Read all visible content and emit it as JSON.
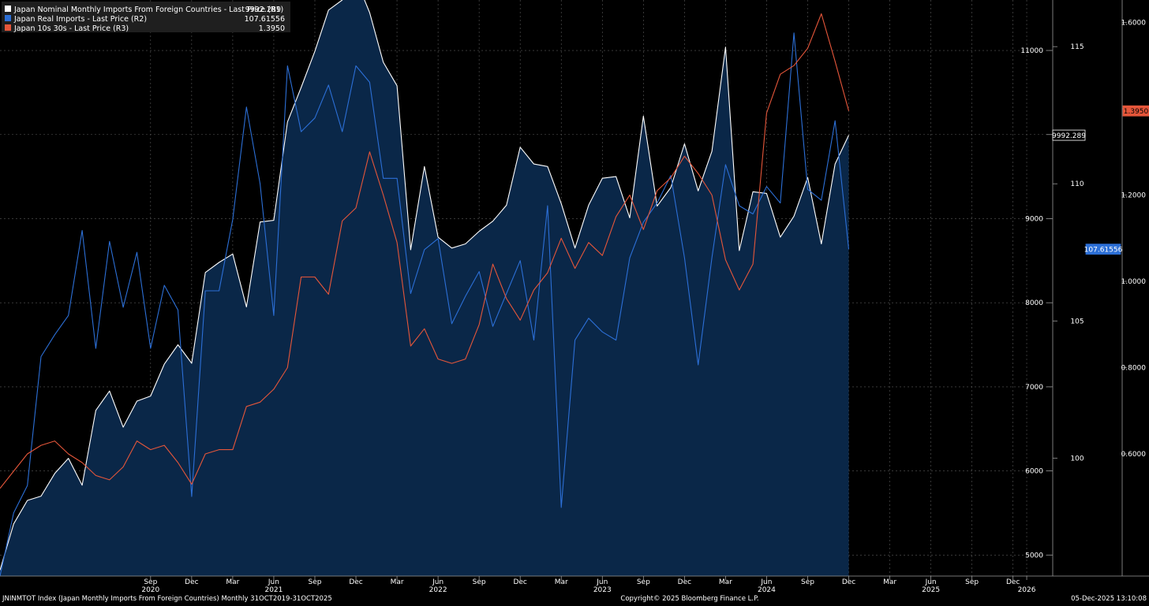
{
  "chart_data": {
    "type": "line",
    "x_start": "2019-10",
    "x_end": "2025-10",
    "x_axis_end": "2026-01",
    "x_ticks": [
      {
        "month": "2020-09",
        "label": "Sep",
        "year_label": "2020"
      },
      {
        "month": "2020-12",
        "label": "Dec",
        "year_label": ""
      },
      {
        "month": "2021-03",
        "label": "Mar",
        "year_label": ""
      },
      {
        "month": "2021-06",
        "label": "Jun",
        "year_label": "2021"
      },
      {
        "month": "2021-09",
        "label": "Sep",
        "year_label": ""
      },
      {
        "month": "2021-12",
        "label": "Dec",
        "year_label": ""
      },
      {
        "month": "2022-03",
        "label": "Mar",
        "year_label": ""
      },
      {
        "month": "2022-06",
        "label": "Jun",
        "year_label": "2022"
      },
      {
        "month": "2022-09",
        "label": "Sep",
        "year_label": ""
      },
      {
        "month": "2022-12",
        "label": "Dec",
        "year_label": ""
      },
      {
        "month": "2023-03",
        "label": "Mar",
        "year_label": ""
      },
      {
        "month": "2023-06",
        "label": "Jun",
        "year_label": "2023"
      },
      {
        "month": "2023-09",
        "label": "Sep",
        "year_label": ""
      },
      {
        "month": "2023-12",
        "label": "Dec",
        "year_label": ""
      },
      {
        "month": "2024-03",
        "label": "Mar",
        "year_label": ""
      },
      {
        "month": "2024-06",
        "label": "Jun",
        "year_label": "2024"
      },
      {
        "month": "2024-09",
        "label": "Sep",
        "year_label": ""
      },
      {
        "month": "2024-12",
        "label": "Dec",
        "year_label": ""
      },
      {
        "month": "2025-03",
        "label": "Mar",
        "year_label": ""
      },
      {
        "month": "2025-06",
        "label": "Jun",
        "year_label": "2025"
      },
      {
        "month": "2025-09",
        "label": "Sep",
        "year_label": ""
      },
      {
        "month": "2025-12",
        "label": "Dec",
        "year_label": ""
      },
      {
        "month": "2026-01",
        "label": "",
        "year_label": "2026"
      }
    ],
    "axes": {
      "R1": {
        "ylim": [
          4750,
          11600
        ],
        "ticks": [
          5000,
          6000,
          7000,
          8000,
          9000,
          10000,
          11000
        ],
        "tick_labels": [
          "5000",
          "6000",
          "7000",
          "8000",
          "9000",
          "",
          "11000"
        ]
      },
      "R2": {
        "ylim": [
          95.7,
          116.7
        ],
        "ticks": [
          100,
          105,
          110,
          115
        ],
        "tick_labels": [
          "100",
          "105",
          "110",
          "115"
        ]
      },
      "R3": {
        "ylim": [
          0.317,
          1.652
        ],
        "ticks": [
          0.6,
          0.8,
          1.0,
          1.2,
          1.4,
          1.6
        ],
        "tick_labels": [
          "0.6000",
          "0.8000",
          "1.0000",
          "1.2000",
          "",
          "1.6000"
        ]
      }
    },
    "grid": true,
    "legend_position": "top-left",
    "series": [
      {
        "name": "Japan Nominal Monthly Imports From Foreign Countries - Last Price (R1)",
        "last_value_label": "9992.289",
        "axis": "R1",
        "color": "#ffffff",
        "fill": "#0a2748",
        "values": [
          4820,
          5370,
          5650,
          5700,
          5970,
          6150,
          5830,
          6720,
          6950,
          6520,
          6830,
          6890,
          7270,
          7500,
          7280,
          8360,
          8480,
          8580,
          7950,
          8960,
          8980,
          10150,
          10560,
          10990,
          11480,
          11600,
          11850,
          11450,
          10860,
          10580,
          8630,
          9620,
          8780,
          8650,
          8700,
          8850,
          8970,
          9160,
          9850,
          9650,
          9620,
          9180,
          8650,
          9160,
          9480,
          9500,
          9010,
          10220,
          9150,
          9370,
          9890,
          9330,
          9800,
          11040,
          8620,
          9320,
          9300,
          8780,
          9030,
          9490,
          8700,
          9650,
          9992.289
        ]
      },
      {
        "name": "Japan Real Imports - Last Price (R2)",
        "last_value_label": "107.61556",
        "axis": "R2",
        "color": "#2c6fd6",
        "values": [
          95.7,
          98.0,
          99.0,
          103.7,
          104.5,
          105.2,
          108.3,
          104.0,
          107.9,
          105.5,
          107.5,
          104.0,
          106.3,
          105.4,
          98.6,
          106.1,
          106.1,
          108.7,
          112.8,
          110.0,
          105.2,
          114.3,
          111.9,
          112.4,
          113.6,
          111.9,
          114.3,
          113.7,
          110.2,
          110.2,
          106.0,
          107.6,
          108.0,
          104.9,
          105.9,
          106.8,
          104.8,
          106.0,
          107.2,
          104.3,
          109.2,
          98.2,
          104.3,
          105.1,
          104.6,
          104.3,
          107.3,
          108.6,
          109.3,
          110.3,
          107.3,
          103.4,
          107.3,
          110.7,
          109.2,
          108.9,
          109.9,
          109.3,
          115.5,
          109.8,
          109.4,
          112.3,
          107.61556
        ]
      },
      {
        "name": "Japan 10s 30s - Last Price (R3)",
        "last_value_label": "1.3950",
        "axis": "R3",
        "color": "#e5563a",
        "values": [
          0.52,
          0.56,
          0.6,
          0.62,
          0.63,
          0.6,
          0.58,
          0.55,
          0.54,
          0.57,
          0.63,
          0.61,
          0.62,
          0.58,
          0.53,
          0.6,
          0.61,
          0.61,
          0.71,
          0.72,
          0.75,
          0.8,
          1.01,
          1.01,
          0.97,
          1.14,
          1.17,
          1.3,
          1.2,
          1.09,
          0.85,
          0.89,
          0.82,
          0.81,
          0.82,
          0.9,
          1.04,
          0.96,
          0.91,
          0.98,
          1.02,
          1.1,
          1.03,
          1.09,
          1.06,
          1.15,
          1.2,
          1.12,
          1.21,
          1.24,
          1.29,
          1.25,
          1.2,
          1.05,
          0.98,
          1.04,
          1.39,
          1.48,
          1.5,
          1.54,
          1.62,
          1.51,
          1.395
        ]
      }
    ],
    "footer_left": "JNINMTOT Index (Japan Monthly Imports From Foreign Countries) Monthly 31OCT2019-31OCT2025",
    "footer_center": "Copyright© 2025 Bloomberg Finance L.P.",
    "footer_right": "05-Dec-2025 13:10:08"
  }
}
